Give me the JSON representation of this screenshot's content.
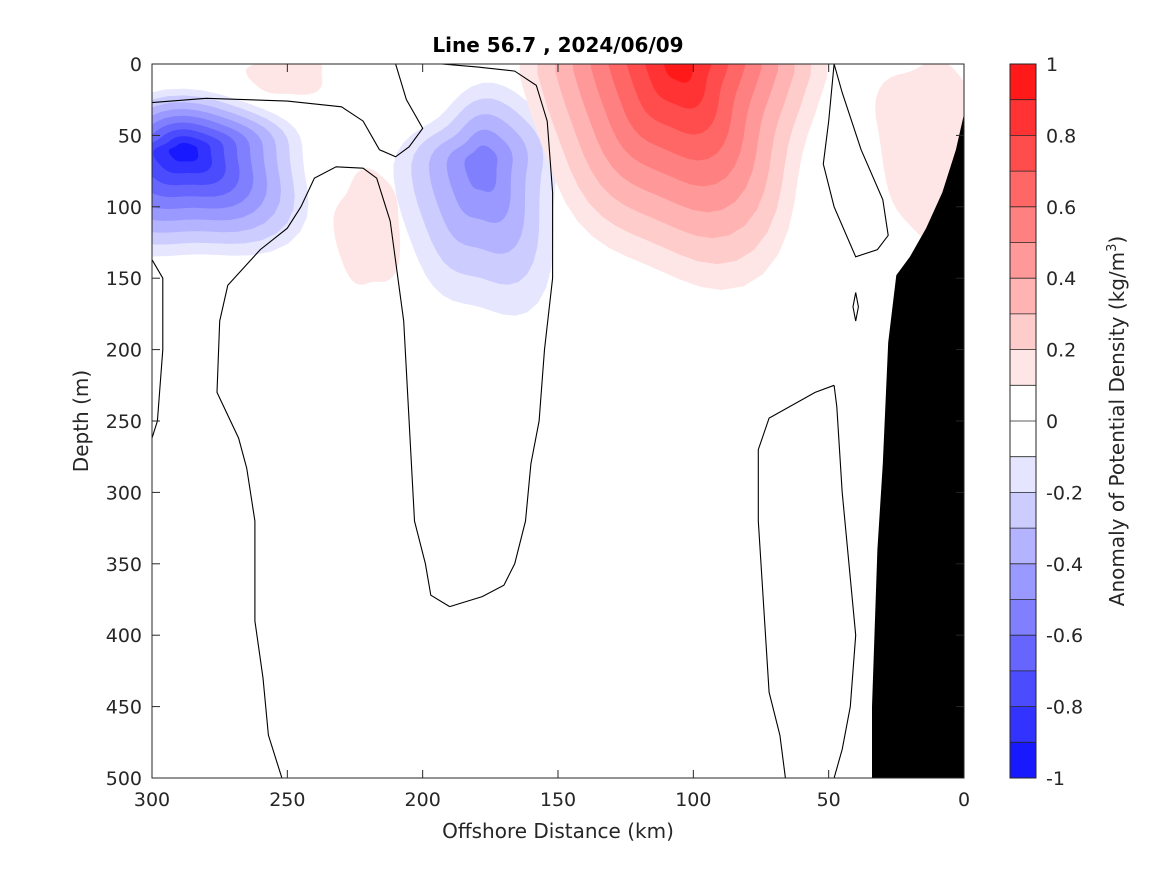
{
  "chart_data": {
    "type": "heatmap",
    "title": "Line 56.7 , 2024/06/09",
    "xlabel": "Offshore Distance (km)",
    "ylabel": "Depth (m)",
    "xlim": [
      300,
      0
    ],
    "ylim": [
      0,
      500
    ],
    "x_reversed": true,
    "y_reversed": true,
    "xticks": [
      "300",
      "250",
      "200",
      "150",
      "100",
      "50",
      "0"
    ],
    "xtick_values": [
      300,
      250,
      200,
      150,
      100,
      50,
      0
    ],
    "yticks": [
      "0",
      "50",
      "100",
      "150",
      "200",
      "250",
      "300",
      "350",
      "400",
      "450",
      "500"
    ],
    "ytick_values": [
      0,
      50,
      100,
      150,
      200,
      250,
      300,
      350,
      400,
      450,
      500
    ],
    "colorbar": {
      "label": "Anomaly of Potential Density (kg/m",
      "label_sup": "3",
      "label_close": ")",
      "range": [
        -1,
        1
      ],
      "step": 0.1,
      "ticks": [
        "1",
        "0.8",
        "0.6",
        "0.4",
        "0.2",
        "0",
        "-0.2",
        "-0.4",
        "-0.6",
        "-0.8",
        "-1"
      ],
      "tick_values": [
        1,
        0.8,
        0.6,
        0.4,
        0.2,
        0,
        -0.2,
        -0.4,
        -0.6,
        -0.8,
        -1
      ],
      "colormap": "blue-white-red",
      "negative_color": "#0000ff",
      "positive_color": "#ff0000"
    },
    "features": [
      {
        "kind": "negative-anomaly",
        "center_km": 290,
        "center_depth_m": 65,
        "peak": -0.9
      },
      {
        "kind": "negative-anomaly",
        "center_km": 178,
        "center_depth_m": 72,
        "peak": -0.5
      },
      {
        "kind": "positive-anomaly",
        "center_km": 110,
        "center_depth_m": 15,
        "peak": 0.9
      },
      {
        "kind": "positive-anomaly",
        "center_km": 220,
        "center_depth_m": 112,
        "peak": 0.15
      },
      {
        "kind": "positive-anomaly",
        "center_km": 12,
        "center_depth_m": 20,
        "peak": 0.2
      }
    ],
    "bathymetry": {
      "color": "#000000",
      "profile_km": [
        0,
        0,
        3,
        8,
        14,
        20,
        25,
        28,
        30,
        32,
        34,
        34
      ],
      "profile_depth_m": [
        500,
        35,
        60,
        90,
        115,
        135,
        148,
        195,
        280,
        340,
        450,
        500
      ]
    },
    "grid": false,
    "legend": "colorbar-right"
  }
}
